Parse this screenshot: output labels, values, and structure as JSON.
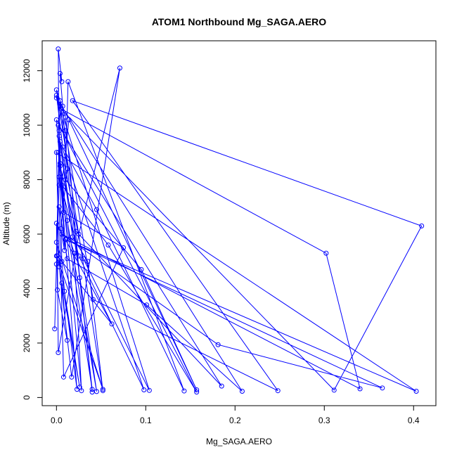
{
  "chart_data": {
    "type": "line",
    "title": "ATOM1 Northbound Mg_SAGA.AERO",
    "xlabel": "Mg_SAGA.AERO",
    "ylabel": "Altitude (m)",
    "xlim": [
      -0.016,
      0.425
    ],
    "ylim": [
      -300,
      13100
    ],
    "x_ticks": [
      0.0,
      0.1,
      0.2,
      0.3,
      0.4
    ],
    "x_tick_labels": [
      "0.0",
      "0.1",
      "0.2",
      "0.3",
      "0.4"
    ],
    "y_ticks": [
      0,
      2000,
      4000,
      6000,
      8000,
      10000,
      12000
    ],
    "y_tick_labels": [
      "0",
      "2000",
      "4000",
      "6000",
      "8000",
      "10000",
      "12000"
    ],
    "grid": false,
    "legend": "none",
    "series_color": "#0000ff",
    "points": [
      [
        -0.002,
        2520
      ],
      [
        0.0,
        4900
      ],
      [
        0.003,
        7800
      ],
      [
        0.002,
        12800
      ],
      [
        0.006,
        11600
      ],
      [
        0.004,
        11900
      ],
      [
        0.007,
        10700
      ],
      [
        0.012,
        8400
      ],
      [
        0.005,
        6200
      ],
      [
        0.009,
        5400
      ],
      [
        0.003,
        9800
      ],
      [
        0.006,
        5000
      ],
      [
        0.009,
        3900
      ],
      [
        0.023,
        300
      ],
      [
        0.002,
        9000
      ],
      [
        0.015,
        5800
      ],
      [
        0.02,
        5300
      ],
      [
        0.028,
        250
      ],
      [
        0.004,
        8600
      ],
      [
        0.012,
        6500
      ],
      [
        0.045,
        220
      ],
      [
        0.003,
        9600
      ],
      [
        0.018,
        5900
      ],
      [
        0.035,
        5000
      ],
      [
        0.052,
        250
      ],
      [
        0.0,
        11300
      ],
      [
        0.01,
        10300
      ],
      [
        0.026,
        4400
      ],
      [
        0.04,
        300
      ],
      [
        0.003,
        8100
      ],
      [
        0.025,
        5200
      ],
      [
        0.098,
        280
      ],
      [
        0.004,
        9400
      ],
      [
        0.03,
        5100
      ],
      [
        0.104,
        260
      ],
      [
        0.0,
        11100
      ],
      [
        0.007,
        9200
      ],
      [
        0.045,
        6900
      ],
      [
        0.143,
        240
      ],
      [
        0.013,
        11600
      ],
      [
        0.01,
        8000
      ],
      [
        0.095,
        4700
      ],
      [
        0.157,
        280
      ],
      [
        0.014,
        10200
      ],
      [
        0.006,
        7800
      ],
      [
        0.058,
        5600
      ],
      [
        0.157,
        200
      ],
      [
        0.0,
        10200
      ],
      [
        0.004,
        8500
      ],
      [
        0.022,
        6100
      ],
      [
        0.185,
        420
      ],
      [
        0.002,
        10000
      ],
      [
        0.008,
        6800
      ],
      [
        0.075,
        5500
      ],
      [
        0.008,
        750
      ],
      [
        0.003,
        7000
      ],
      [
        0.012,
        5100
      ],
      [
        0.101,
        3400
      ],
      [
        0.208,
        230
      ],
      [
        0.0,
        11000
      ],
      [
        0.01,
        9800
      ],
      [
        0.041,
        3600
      ],
      [
        0.248,
        250
      ],
      [
        0.018,
        10900
      ],
      [
        0.409,
        6300
      ],
      [
        0.311,
        270
      ],
      [
        0.005,
        10600
      ],
      [
        0.302,
        5300
      ],
      [
        0.34,
        320
      ],
      [
        0.006,
        6000
      ],
      [
        0.181,
        1940
      ],
      [
        0.365,
        350
      ],
      [
        0.01,
        5800
      ],
      [
        0.403,
        230
      ],
      [
        0.0,
        9000
      ],
      [
        0.003,
        4800
      ],
      [
        0.017,
        750
      ],
      [
        0.071,
        12100
      ],
      [
        0.025,
        6000
      ],
      [
        0.002,
        1650
      ],
      [
        0.001,
        5200
      ],
      [
        0.062,
        2700
      ],
      [
        0.0,
        6400
      ],
      [
        0.001,
        3950
      ],
      [
        0.012,
        2100
      ],
      [
        0.006,
        4200
      ],
      [
        0.026,
        380
      ],
      [
        0.0,
        5700
      ],
      [
        0.052,
        300
      ],
      [
        0.0,
        5200
      ],
      [
        0.004,
        10900
      ],
      [
        0.04,
        200
      ]
    ]
  }
}
